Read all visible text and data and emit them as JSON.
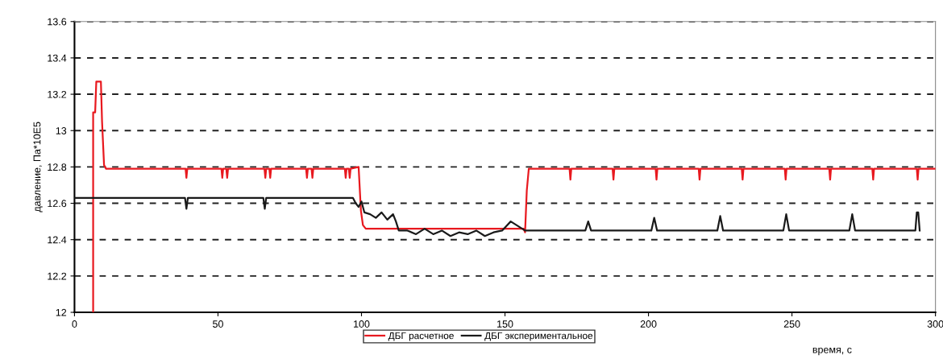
{
  "chart_data": {
    "type": "line",
    "xlabel": "время, с",
    "ylabel": "давление, Па*10E5",
    "xlim": [
      0,
      300
    ],
    "xticks": [
      0,
      50,
      100,
      150,
      200,
      250,
      300
    ],
    "ylim": [
      12,
      13.6
    ],
    "yticks": [
      12,
      12.2,
      12.4,
      12.6,
      12.8,
      13,
      13.2,
      13.4,
      13.6
    ],
    "grid": "y",
    "legend": "bottom",
    "line_style": "solid",
    "marker": "none",
    "series": [
      {
        "name": "ДБГ расчетное",
        "color": "#e8191f",
        "x": [
          6.5,
          6.5,
          7.2,
          7.6,
          9.2,
          9.6,
          10.3,
          11,
          38.7,
          39,
          39.3,
          51.2,
          51.5,
          51.8,
          52.9,
          53.2,
          53.5,
          66.2,
          66.5,
          66.8,
          67.9,
          68.2,
          68.5,
          80.7,
          81,
          81.3,
          82.6,
          82.9,
          83.2,
          94.2,
          94.5,
          94.8,
          95.6,
          95.9,
          96.2,
          99,
          99.8,
          100.5,
          101.5,
          103,
          156.5,
          157,
          157.6,
          158.3,
          172.5,
          172.8,
          173.1,
          187.5,
          187.8,
          188.1,
          202.5,
          202.8,
          203.1,
          217.5,
          217.8,
          218.1,
          232.5,
          232.8,
          233.1,
          247.5,
          247.8,
          248.1,
          263,
          263.3,
          263.6,
          278,
          278.3,
          278.6,
          293.5,
          293.8,
          294.1,
          300
        ],
        "values": [
          12.0,
          13.1,
          13.1,
          13.27,
          13.27,
          13.05,
          12.81,
          12.79,
          12.79,
          12.74,
          12.79,
          12.79,
          12.74,
          12.79,
          12.79,
          12.74,
          12.79,
          12.79,
          12.74,
          12.79,
          12.79,
          12.74,
          12.79,
          12.79,
          12.74,
          12.79,
          12.79,
          12.74,
          12.79,
          12.79,
          12.74,
          12.79,
          12.79,
          12.74,
          12.79,
          12.8,
          12.56,
          12.48,
          12.46,
          12.46,
          12.46,
          12.44,
          12.67,
          12.79,
          12.79,
          12.73,
          12.79,
          12.79,
          12.73,
          12.79,
          12.79,
          12.73,
          12.79,
          12.79,
          12.73,
          12.79,
          12.79,
          12.73,
          12.79,
          12.79,
          12.73,
          12.79,
          12.79,
          12.73,
          12.79,
          12.79,
          12.73,
          12.79,
          12.79,
          12.73,
          12.79,
          12.79
        ]
      },
      {
        "name": "ДБГ экспериментальное",
        "color": "#1a1a1a",
        "x": [
          0,
          38.5,
          39,
          39.5,
          65.8,
          66.3,
          66.8,
          97,
          98,
          99,
          100,
          101,
          103,
          105,
          107,
          109,
          111,
          112,
          113,
          116,
          119,
          122,
          125,
          128,
          131,
          134,
          137,
          140,
          143,
          146,
          149,
          152,
          155,
          157,
          178,
          179,
          180,
          201,
          202,
          203,
          224,
          225,
          226,
          247,
          248,
          249,
          270,
          271,
          272,
          293,
          293.5,
          294,
          294.5
        ],
        "values": [
          12.63,
          12.63,
          12.57,
          12.63,
          12.63,
          12.57,
          12.63,
          12.63,
          12.6,
          12.58,
          12.61,
          12.55,
          12.54,
          12.52,
          12.55,
          12.51,
          12.54,
          12.5,
          12.45,
          12.45,
          12.43,
          12.46,
          12.43,
          12.45,
          12.42,
          12.44,
          12.43,
          12.45,
          12.42,
          12.44,
          12.45,
          12.5,
          12.47,
          12.45,
          12.45,
          12.5,
          12.45,
          12.45,
          12.52,
          12.45,
          12.45,
          12.53,
          12.45,
          12.45,
          12.54,
          12.45,
          12.45,
          12.54,
          12.45,
          12.45,
          12.55,
          12.55,
          12.45
        ]
      }
    ]
  }
}
